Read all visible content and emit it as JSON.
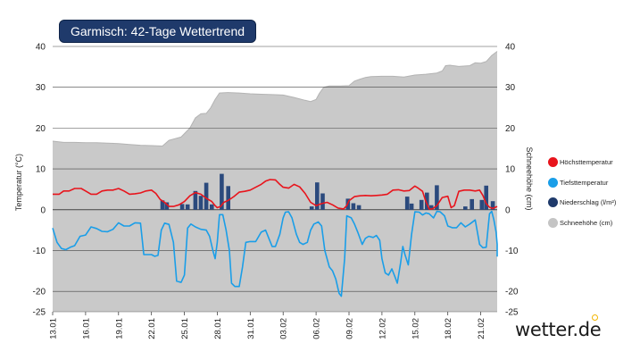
{
  "title": "Garmisch: 42-Tage Wettertrend",
  "brand": "wetter.de",
  "legend": [
    {
      "label": "Höchsttemperatur",
      "color": "#e8141c"
    },
    {
      "label": "Tiefsttemperatur",
      "color": "#1a9ee8"
    },
    {
      "label": "Niederschlag (l/m²)",
      "color": "#1f3a6b"
    },
    {
      "label": "Schneehöhe (cm)",
      "color": "#c4c4c4"
    }
  ],
  "colors": {
    "snow_area": "#c9c9c9",
    "snow_line": "#b3b3b3",
    "max_line": "#e8141c",
    "min_line": "#1a9ee8",
    "precip_bar": "#2b4a7d",
    "grid": "#444444"
  },
  "chart_data": {
    "type": "line",
    "title": "Garmisch: 42-Tage Wettertrend",
    "ylabel_left": "Temperatur (°C)",
    "ylabel_right": "Schneehöhe (cm)",
    "ylim_left": [
      -25,
      40
    ],
    "ylim_right": [
      -25,
      40
    ],
    "yticks_left": [
      40,
      30,
      20,
      10,
      0,
      -10,
      -20,
      -25
    ],
    "yticks_right": [
      40,
      30,
      20,
      10,
      0,
      -10,
      -20,
      -25
    ],
    "x_start_day": 0,
    "x_end_day": 40.5,
    "xticks": [
      {
        "day": 0,
        "label": "13.01"
      },
      {
        "day": 3,
        "label": "16.01"
      },
      {
        "day": 6,
        "label": "19.01"
      },
      {
        "day": 9,
        "label": "22.01"
      },
      {
        "day": 12,
        "label": "25.01"
      },
      {
        "day": 15,
        "label": "28.01"
      },
      {
        "day": 18,
        "label": "31.01"
      },
      {
        "day": 21,
        "label": "03.02"
      },
      {
        "day": 24,
        "label": "06.02"
      },
      {
        "day": 27,
        "label": "09.02"
      },
      {
        "day": 30,
        "label": "12.02"
      },
      {
        "day": 33,
        "label": "15.02"
      },
      {
        "day": 36,
        "label": "18.02"
      },
      {
        "day": 39,
        "label": "21.02"
      }
    ],
    "series": [
      {
        "name": "Schneehöhe (cm)",
        "kind": "area",
        "points": [
          [
            0,
            16.8
          ],
          [
            1,
            16.5
          ],
          [
            2,
            16.5
          ],
          [
            3,
            16.4
          ],
          [
            4,
            16.4
          ],
          [
            5,
            16.3
          ],
          [
            6,
            16.2
          ],
          [
            7,
            16
          ],
          [
            8,
            15.8
          ],
          [
            9,
            15.7
          ],
          [
            10,
            15.6
          ],
          [
            10.6,
            17
          ],
          [
            11,
            17.3
          ],
          [
            11.7,
            17.8
          ],
          [
            12.5,
            20
          ],
          [
            13,
            22.5
          ],
          [
            13.5,
            23.5
          ],
          [
            14,
            23.6
          ],
          [
            14.4,
            25
          ],
          [
            14.8,
            27
          ],
          [
            15.2,
            28.6
          ],
          [
            16,
            28.7
          ],
          [
            17,
            28.6
          ],
          [
            18,
            28.4
          ],
          [
            19,
            28.3
          ],
          [
            20,
            28.2
          ],
          [
            21,
            28.1
          ],
          [
            22,
            27.5
          ],
          [
            23,
            26.8
          ],
          [
            23.5,
            26.5
          ],
          [
            24,
            27
          ],
          [
            24.3,
            28.5
          ],
          [
            24.7,
            30
          ],
          [
            25.2,
            30.3
          ],
          [
            26,
            30.3
          ],
          [
            27,
            30.4
          ],
          [
            27.5,
            31.5
          ],
          [
            28,
            32
          ],
          [
            28.5,
            32.4
          ],
          [
            29,
            32.6
          ],
          [
            30,
            32.7
          ],
          [
            31,
            32.7
          ],
          [
            32,
            32.5
          ],
          [
            33,
            33
          ],
          [
            34,
            33.2
          ],
          [
            35,
            33.5
          ],
          [
            35.5,
            34
          ],
          [
            35.8,
            35.3
          ],
          [
            36.2,
            35.4
          ],
          [
            37,
            35.1
          ],
          [
            38,
            35.3
          ],
          [
            38.5,
            36
          ],
          [
            39,
            35.9
          ],
          [
            39.5,
            36.3
          ],
          [
            40,
            37.8
          ],
          [
            40.5,
            38.8
          ]
        ]
      },
      {
        "name": "Höchsttemperatur",
        "kind": "line",
        "points": [
          [
            0,
            3.8
          ],
          [
            0.6,
            3.8
          ],
          [
            1,
            4.6
          ],
          [
            1.5,
            4.6
          ],
          [
            2,
            5.2
          ],
          [
            2.6,
            5.2
          ],
          [
            3,
            4.6
          ],
          [
            3.5,
            3.8
          ],
          [
            4,
            3.8
          ],
          [
            4.5,
            4.6
          ],
          [
            5,
            4.8
          ],
          [
            5.5,
            4.8
          ],
          [
            6,
            5.2
          ],
          [
            6.5,
            4.6
          ],
          [
            7,
            3.8
          ],
          [
            7.5,
            3.9
          ],
          [
            8,
            4.1
          ],
          [
            8.5,
            4.6
          ],
          [
            9,
            4.8
          ],
          [
            9.4,
            4
          ],
          [
            9.8,
            2.5
          ],
          [
            10.2,
            1.8
          ],
          [
            10.6,
            0.8
          ],
          [
            11,
            0.8
          ],
          [
            11.5,
            1.2
          ],
          [
            12,
            2
          ],
          [
            12.5,
            3.4
          ],
          [
            13,
            4.2
          ],
          [
            13.5,
            3.8
          ],
          [
            14,
            2.8
          ],
          [
            14.5,
            2
          ],
          [
            14.8,
            1
          ],
          [
            15,
            0.5
          ],
          [
            15.3,
            0.8
          ],
          [
            15.6,
            1.8
          ],
          [
            16,
            2.3
          ],
          [
            16.5,
            3.2
          ],
          [
            17,
            4.3
          ],
          [
            17.5,
            4.5
          ],
          [
            18,
            4.8
          ],
          [
            18.5,
            5.5
          ],
          [
            19,
            6.2
          ],
          [
            19.4,
            7
          ],
          [
            19.8,
            7.4
          ],
          [
            20.3,
            7.3
          ],
          [
            20.7,
            6.2
          ],
          [
            21,
            5.5
          ],
          [
            21.5,
            5.3
          ],
          [
            22,
            6.2
          ],
          [
            22.5,
            5.6
          ],
          [
            23,
            4
          ],
          [
            23.5,
            1.8
          ],
          [
            24,
            1
          ],
          [
            24.5,
            1.5
          ],
          [
            25,
            1.8
          ],
          [
            25.5,
            1.2
          ],
          [
            26,
            0.4
          ],
          [
            26.5,
            0.2
          ],
          [
            26.8,
            1
          ],
          [
            27,
            2.2
          ],
          [
            27.5,
            3.2
          ],
          [
            28,
            3.4
          ],
          [
            28.5,
            3.5
          ],
          [
            29,
            3.4
          ],
          [
            29.5,
            3.5
          ],
          [
            30,
            3.6
          ],
          [
            30.5,
            3.8
          ],
          [
            31,
            4.8
          ],
          [
            31.5,
            4.9
          ],
          [
            32,
            4.6
          ],
          [
            32.5,
            4.7
          ],
          [
            33,
            5.8
          ],
          [
            33.3,
            5.3
          ],
          [
            33.7,
            4.5
          ],
          [
            34,
            2
          ],
          [
            34.3,
            0.2
          ],
          [
            34.6,
            0.2
          ],
          [
            35,
            1
          ],
          [
            35.5,
            3
          ],
          [
            36,
            3.3
          ],
          [
            36.3,
            0.5
          ],
          [
            36.6,
            1
          ],
          [
            37,
            4.5
          ],
          [
            37.5,
            4.8
          ],
          [
            38,
            4.8
          ],
          [
            38.5,
            4.6
          ],
          [
            38.9,
            4.8
          ],
          [
            39.2,
            3.5
          ],
          [
            39.5,
            1.5
          ],
          [
            39.8,
            0.6
          ],
          [
            40.1,
            0.3
          ],
          [
            40.5,
            0.8
          ]
        ]
      },
      {
        "name": "Tiefsttemperatur",
        "kind": "line",
        "points": [
          [
            0,
            -4.5
          ],
          [
            0.4,
            -8
          ],
          [
            0.8,
            -9.5
          ],
          [
            1.2,
            -9.8
          ],
          [
            1.6,
            -9.2
          ],
          [
            2,
            -8.8
          ],
          [
            2.5,
            -6.5
          ],
          [
            3,
            -6.2
          ],
          [
            3.5,
            -4.2
          ],
          [
            4,
            -4.6
          ],
          [
            4.5,
            -5.3
          ],
          [
            5,
            -5.4
          ],
          [
            5.5,
            -4.8
          ],
          [
            6,
            -3.2
          ],
          [
            6.5,
            -4
          ],
          [
            7,
            -4
          ],
          [
            7.5,
            -3.2
          ],
          [
            8,
            -3.3
          ],
          [
            8.3,
            -11
          ],
          [
            8.6,
            -11
          ],
          [
            9,
            -11
          ],
          [
            9.3,
            -11.4
          ],
          [
            9.6,
            -11.2
          ],
          [
            9.9,
            -5
          ],
          [
            10.2,
            -3.3
          ],
          [
            10.6,
            -3.6
          ],
          [
            11,
            -8
          ],
          [
            11.3,
            -17.5
          ],
          [
            11.7,
            -17.8
          ],
          [
            12,
            -16
          ],
          [
            12.3,
            -4.5
          ],
          [
            12.6,
            -3.5
          ],
          [
            13,
            -4.2
          ],
          [
            13.5,
            -4.8
          ],
          [
            14,
            -5
          ],
          [
            14.3,
            -6.5
          ],
          [
            14.6,
            -10
          ],
          [
            14.8,
            -12
          ],
          [
            15,
            -8
          ],
          [
            15.2,
            -1.2
          ],
          [
            15.5,
            -1.2
          ],
          [
            15.8,
            -5
          ],
          [
            16.1,
            -10
          ],
          [
            16.3,
            -18
          ],
          [
            16.6,
            -18.8
          ],
          [
            17,
            -18.8
          ],
          [
            17.3,
            -14
          ],
          [
            17.6,
            -8
          ],
          [
            18,
            -7.8
          ],
          [
            18.5,
            -7.8
          ],
          [
            19,
            -5.5
          ],
          [
            19.4,
            -5
          ],
          [
            19.7,
            -7
          ],
          [
            20,
            -9
          ],
          [
            20.3,
            -9
          ],
          [
            20.7,
            -6
          ],
          [
            21,
            -2
          ],
          [
            21.2,
            -0.6
          ],
          [
            21.5,
            -0.5
          ],
          [
            21.8,
            -2
          ],
          [
            22.2,
            -6
          ],
          [
            22.5,
            -8
          ],
          [
            22.8,
            -8.5
          ],
          [
            23.2,
            -8
          ],
          [
            23.5,
            -5
          ],
          [
            23.8,
            -3.5
          ],
          [
            24.2,
            -3
          ],
          [
            24.5,
            -4
          ],
          [
            24.8,
            -10
          ],
          [
            25.2,
            -14
          ],
          [
            25.5,
            -15
          ],
          [
            25.8,
            -17
          ],
          [
            26.1,
            -20.5
          ],
          [
            26.3,
            -21.2
          ],
          [
            26.6,
            -12
          ],
          [
            26.8,
            -1.5
          ],
          [
            27.2,
            -2
          ],
          [
            27.5,
            -3.5
          ],
          [
            27.8,
            -5.5
          ],
          [
            28.2,
            -8.5
          ],
          [
            28.5,
            -7
          ],
          [
            28.8,
            -6.5
          ],
          [
            29.2,
            -6.8
          ],
          [
            29.5,
            -6.3
          ],
          [
            29.8,
            -7.5
          ],
          [
            30,
            -12
          ],
          [
            30.3,
            -15.5
          ],
          [
            30.6,
            -16
          ],
          [
            30.9,
            -14.5
          ],
          [
            31.2,
            -16.5
          ],
          [
            31.4,
            -18
          ],
          [
            31.7,
            -13
          ],
          [
            31.9,
            -9
          ],
          [
            32.1,
            -11
          ],
          [
            32.4,
            -13.5
          ],
          [
            32.7,
            -6
          ],
          [
            33,
            -0.5
          ],
          [
            33.4,
            -0.6
          ],
          [
            33.7,
            -1.3
          ],
          [
            34,
            -0.8
          ],
          [
            34.3,
            -1
          ],
          [
            34.7,
            -2
          ],
          [
            35,
            -0.4
          ],
          [
            35.3,
            -0.5
          ],
          [
            35.7,
            -1.5
          ],
          [
            36,
            -4
          ],
          [
            36.4,
            -4.4
          ],
          [
            36.8,
            -4.4
          ],
          [
            37.2,
            -3.2
          ],
          [
            37.6,
            -4.2
          ],
          [
            38,
            -3.5
          ],
          [
            38.5,
            -2.5
          ],
          [
            38.9,
            -8.5
          ],
          [
            39.2,
            -9.3
          ],
          [
            39.5,
            -9.2
          ],
          [
            39.8,
            -1
          ],
          [
            40,
            -0.4
          ],
          [
            40.2,
            -2.5
          ],
          [
            40.4,
            -5.5
          ],
          [
            40.7,
            -8.5
          ],
          [
            41,
            -11.5
          ]
        ]
      },
      {
        "name": "Niederschlag (l/m²)",
        "kind": "bar",
        "points": [
          [
            10,
            2.3
          ],
          [
            10.4,
            1.8
          ],
          [
            11.8,
            1.4
          ],
          [
            12.3,
            1.3
          ],
          [
            13,
            4.6
          ],
          [
            13.5,
            3.4
          ],
          [
            14,
            6.6
          ],
          [
            14.5,
            1.3
          ],
          [
            15.4,
            8.8
          ],
          [
            16,
            5.8
          ],
          [
            23.6,
            0.8
          ],
          [
            24.1,
            6.7
          ],
          [
            24.6,
            4
          ],
          [
            26.9,
            2.7
          ],
          [
            27.4,
            1.6
          ],
          [
            27.9,
            1.1
          ],
          [
            32.3,
            3.2
          ],
          [
            32.7,
            1.5
          ],
          [
            33.6,
            2.4
          ],
          [
            34.1,
            4.2
          ],
          [
            34.5,
            1.1
          ],
          [
            35,
            6
          ],
          [
            37.6,
            0.8
          ],
          [
            38.2,
            2.6
          ],
          [
            39.1,
            2.4
          ],
          [
            39.5,
            5.9
          ],
          [
            40.1,
            2.1
          ]
        ]
      }
    ]
  }
}
